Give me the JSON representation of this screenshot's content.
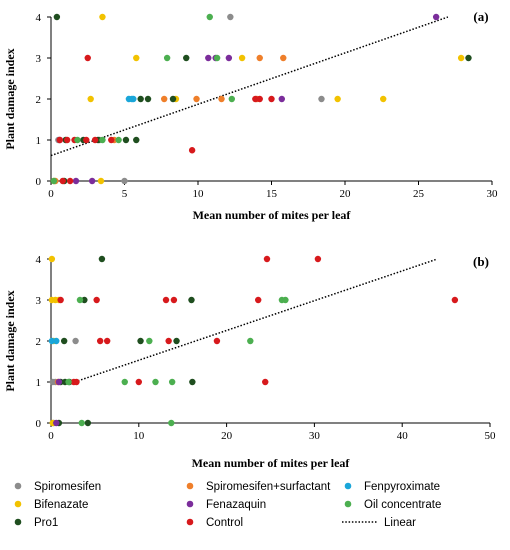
{
  "chart_data": [
    {
      "type": "scatter",
      "panel_label": "(a)",
      "xlabel": "Mean number of mites per leaf",
      "ylabel": "Plant damage index",
      "xlim": [
        0,
        30
      ],
      "ylim": [
        0,
        4
      ],
      "xticks": [
        "0",
        "5",
        "10",
        "15",
        "20",
        "25",
        "30"
      ],
      "yticks": [
        "0",
        "1",
        "2",
        "3",
        "4"
      ],
      "trendline": {
        "name": "Linear",
        "x": [
          0,
          27
        ],
        "y": [
          0.62,
          4.0
        ]
      },
      "series": [
        {
          "name": "Spiromesifen",
          "color": "#8c8c8c",
          "points": [
            [
              12.2,
              4
            ],
            [
              18.4,
              2
            ],
            [
              5.0,
              0
            ],
            [
              3.3,
              1
            ],
            [
              0.5,
              1
            ]
          ]
        },
        {
          "name": "Bifenazate",
          "color": "#f2c200",
          "points": [
            [
              3.5,
              4
            ],
            [
              27.9,
              3
            ],
            [
              13.0,
              3
            ],
            [
              5.8,
              3
            ],
            [
              2.7,
              2
            ],
            [
              8.5,
              2
            ],
            [
              19.5,
              2
            ],
            [
              22.6,
              2
            ],
            [
              3.4,
              0
            ],
            [
              0.2,
              0
            ]
          ]
        },
        {
          "name": "Pro1",
          "color": "#1f4e1f",
          "points": [
            [
              0.4,
              4
            ],
            [
              9.2,
              3
            ],
            [
              28.4,
              3
            ],
            [
              6.1,
              2
            ],
            [
              6.6,
              2
            ],
            [
              8.3,
              2
            ],
            [
              3.2,
              1
            ],
            [
              5.1,
              1
            ],
            [
              5.8,
              1
            ],
            [
              2.2,
              1
            ],
            [
              1.0,
              1
            ],
            [
              0.9,
              0
            ]
          ]
        },
        {
          "name": "Spiromesifen+surfactant",
          "color": "#ef7f2a",
          "points": [
            [
              15.8,
              3
            ],
            [
              14.2,
              3
            ],
            [
              11.6,
              2
            ],
            [
              14.0,
              2
            ],
            [
              7.7,
              2
            ],
            [
              9.9,
              2
            ],
            [
              4.3,
              1
            ],
            [
              0.3,
              0
            ]
          ]
        },
        {
          "name": "Fenazaquin",
          "color": "#7b2d9b",
          "points": [
            [
              10.7,
              3
            ],
            [
              11.2,
              3
            ],
            [
              12.1,
              3
            ],
            [
              15.7,
              2
            ],
            [
              26.2,
              4
            ],
            [
              1.7,
              0
            ],
            [
              2.8,
              0
            ],
            [
              0.6,
              1
            ]
          ]
        },
        {
          "name": "Control",
          "color": "#d7191c",
          "points": [
            [
              2.5,
              3
            ],
            [
              13.9,
              2
            ],
            [
              14.2,
              2
            ],
            [
              15.0,
              2
            ],
            [
              9.6,
              0.75
            ],
            [
              4.1,
              1
            ],
            [
              3.0,
              1
            ],
            [
              0.6,
              1
            ],
            [
              1.1,
              1
            ],
            [
              1.6,
              1
            ],
            [
              2.4,
              1
            ],
            [
              0.8,
              0
            ],
            [
              1.3,
              0
            ]
          ]
        },
        {
          "name": "Fenpyroximate",
          "color": "#1aa6d9",
          "points": [
            [
              5.3,
              2
            ],
            [
              5.6,
              2
            ],
            [
              5.5,
              2
            ]
          ]
        },
        {
          "name": "Oil concentrate",
          "color": "#4caf50",
          "points": [
            [
              10.8,
              4
            ],
            [
              7.9,
              3
            ],
            [
              11.3,
              3
            ],
            [
              12.3,
              2
            ],
            [
              4.6,
              1
            ],
            [
              3.5,
              1
            ],
            [
              1.8,
              1
            ],
            [
              0.2,
              0
            ]
          ]
        }
      ]
    },
    {
      "type": "scatter",
      "panel_label": "(b)",
      "xlabel": "Mean number of mites per leaf",
      "ylabel": "Plant damage index",
      "xlim": [
        0,
        50
      ],
      "ylim": [
        0,
        4
      ],
      "xticks": [
        "0",
        "10",
        "20",
        "30",
        "40",
        "50"
      ],
      "yticks": [
        "0",
        "1",
        "2",
        "3",
        "4"
      ],
      "trendline": {
        "name": "Linear",
        "x": [
          2,
          44
        ],
        "y": [
          0.95,
          4.0
        ]
      },
      "series": [
        {
          "name": "Spiromesifen",
          "color": "#8c8c8c",
          "points": [
            [
              0.2,
              1
            ],
            [
              0.5,
              1
            ],
            [
              2.8,
              2
            ],
            [
              0.3,
              0
            ]
          ]
        },
        {
          "name": "Bifenazate",
          "color": "#f2c200",
          "points": [
            [
              0.1,
              4
            ],
            [
              0.1,
              3
            ],
            [
              0.5,
              3
            ],
            [
              0.9,
              3
            ],
            [
              0.3,
              2
            ],
            [
              0.2,
              0
            ]
          ]
        },
        {
          "name": "Pro1",
          "color": "#1f4e1f",
          "points": [
            [
              5.8,
              4
            ],
            [
              3.8,
              3
            ],
            [
              16.0,
              3
            ],
            [
              1.5,
              2
            ],
            [
              10.2,
              2
            ],
            [
              14.3,
              2
            ],
            [
              1.1,
              1
            ],
            [
              1.6,
              1
            ],
            [
              2.1,
              1
            ],
            [
              16.1,
              1
            ],
            [
              0.9,
              0
            ],
            [
              4.2,
              0
            ]
          ]
        },
        {
          "name": "Spiromesifen+surfactant",
          "color": "#ef7f2a",
          "points": [
            [
              0.8,
              1
            ]
          ]
        },
        {
          "name": "Fenazaquin",
          "color": "#7b2d9b",
          "points": [
            [
              0.6,
              0
            ],
            [
              0.9,
              1
            ]
          ]
        },
        {
          "name": "Control",
          "color": "#d7191c",
          "points": [
            [
              24.6,
              4
            ],
            [
              30.4,
              4
            ],
            [
              1.1,
              3
            ],
            [
              5.2,
              3
            ],
            [
              13.1,
              3
            ],
            [
              14.0,
              3
            ],
            [
              23.6,
              3
            ],
            [
              46.0,
              3
            ],
            [
              5.6,
              2
            ],
            [
              6.4,
              2
            ],
            [
              13.4,
              2
            ],
            [
              18.9,
              2
            ],
            [
              2.6,
              1
            ],
            [
              2.9,
              1
            ],
            [
              10.0,
              1
            ],
            [
              24.4,
              1
            ]
          ]
        },
        {
          "name": "Fenpyroximate",
          "color": "#1aa6d9",
          "points": [
            [
              0.1,
              2
            ],
            [
              0.6,
              2
            ]
          ]
        },
        {
          "name": "Oil concentrate",
          "color": "#4caf50",
          "points": [
            [
              3.3,
              3
            ],
            [
              26.3,
              3
            ],
            [
              26.7,
              3
            ],
            [
              22.7,
              2
            ],
            [
              11.2,
              2
            ],
            [
              8.4,
              1
            ],
            [
              11.9,
              1
            ],
            [
              13.8,
              1
            ],
            [
              3.5,
              0
            ],
            [
              13.7,
              0
            ],
            [
              2.0,
              1
            ]
          ]
        }
      ]
    }
  ],
  "legend": {
    "items": [
      {
        "name": "Spiromesifen",
        "color": "#8c8c8c",
        "kind": "marker"
      },
      {
        "name": "Spiromesifen+surfactant",
        "color": "#ef7f2a",
        "kind": "marker"
      },
      {
        "name": "Fenpyroximate",
        "color": "#1aa6d9",
        "kind": "marker"
      },
      {
        "name": "Bifenazate",
        "color": "#f2c200",
        "kind": "marker"
      },
      {
        "name": "Fenazaquin",
        "color": "#7b2d9b",
        "kind": "marker"
      },
      {
        "name": "Oil concentrate",
        "color": "#4caf50",
        "kind": "marker"
      },
      {
        "name": "Pro1",
        "color": "#1f4e1f",
        "kind": "marker"
      },
      {
        "name": "Control",
        "color": "#d7191c",
        "kind": "marker"
      },
      {
        "name": "Linear",
        "color": "#000000",
        "kind": "line"
      }
    ]
  }
}
